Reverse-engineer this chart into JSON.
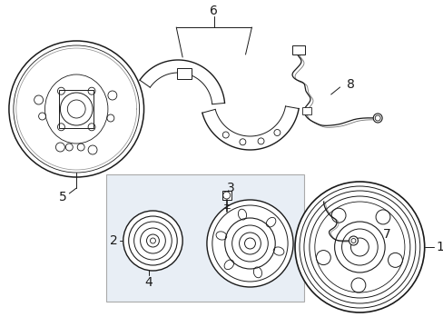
{
  "bg_color": "#ffffff",
  "line_color": "#1a1a1a",
  "box_bg_color": "#e8eef5",
  "box_border_color": "#999999",
  "font_size": 10
}
